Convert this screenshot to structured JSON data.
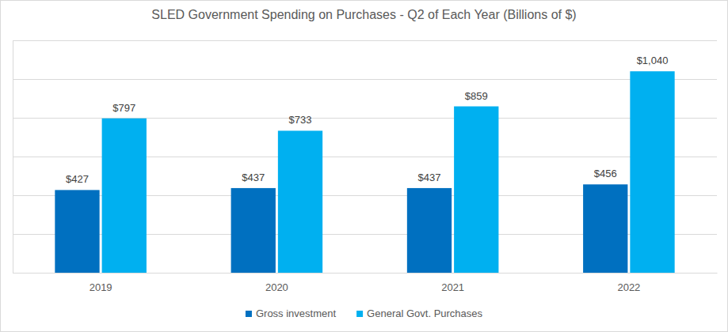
{
  "chart_data": {
    "type": "bar",
    "title": "SLED Government Spending on Purchases - Q2 of Each Year (Billions of $)",
    "categories": [
      "2019",
      "2020",
      "2021",
      "2022"
    ],
    "series": [
      {
        "name": "Gross investment",
        "color": "#0070c0",
        "values": [
          427,
          437,
          437,
          456
        ],
        "value_labels": [
          "$427",
          "$437",
          "$437",
          "$456"
        ]
      },
      {
        "name": "General Govt. Purchases",
        "color": "#00b0f0",
        "values": [
          797,
          733,
          859,
          1040
        ],
        "value_labels": [
          "$797",
          "$733",
          "$859",
          "$1,040"
        ]
      }
    ],
    "ylim": [
      0,
      1200
    ],
    "yticks": [
      0,
      200,
      400,
      600,
      800,
      1000,
      1200
    ],
    "grid": true,
    "data_labels": true,
    "tick_labels": "x",
    "legend": "bottom"
  }
}
